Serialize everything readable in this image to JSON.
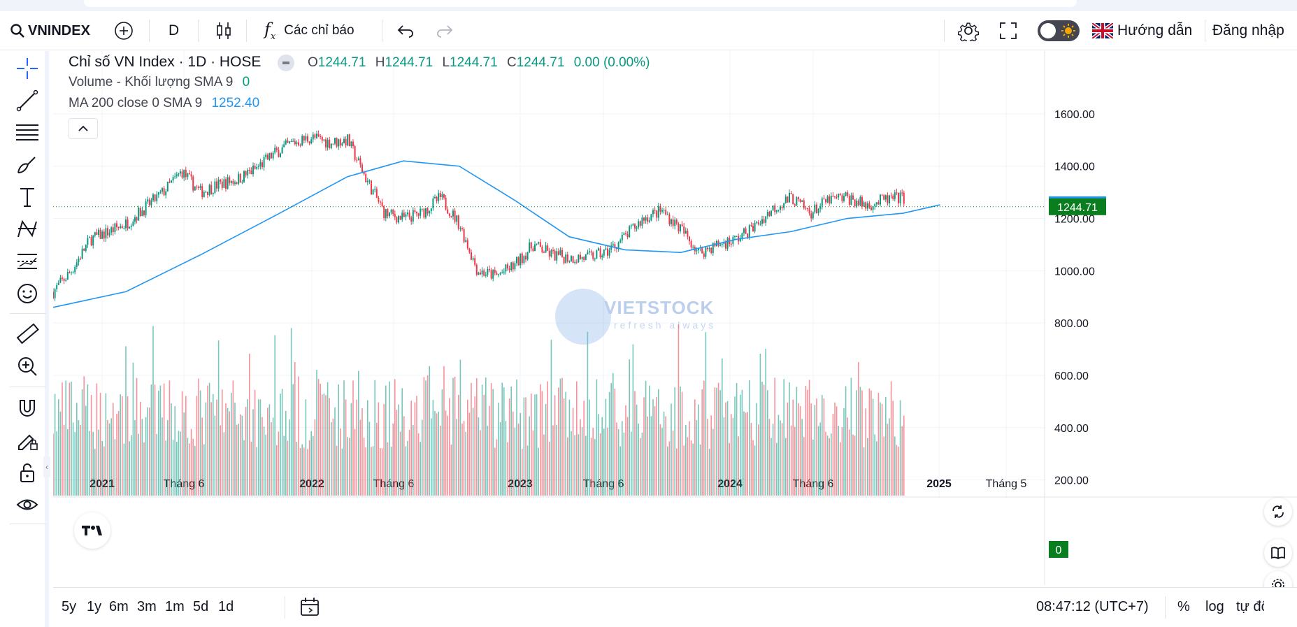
{
  "toolbar": {
    "symbol": "VNINDEX",
    "interval": "D",
    "indicators_label": "Các chỉ báo",
    "guide_label": "Hướng dẫn",
    "login_label": "Đăng nhập"
  },
  "legend": {
    "title": "Chỉ số VN Index · 1D · HOSE",
    "o_label": "O",
    "o_value": "1244.71",
    "h_label": "H",
    "h_value": "1244.71",
    "l_label": "L",
    "l_value": "1244.71",
    "c_label": "C",
    "c_value": "1244.71",
    "change": "0.00 (0.00%)",
    "volume_label": "Volume - Khối lượng SMA 9",
    "volume_value": "0",
    "ma_label": "MA 200 close 0 SMA 9",
    "ma_value": "1252.40"
  },
  "watermark": {
    "text": "VIETSTOCK",
    "sub": "refresh always"
  },
  "bottom": {
    "ranges": [
      "5y",
      "1y",
      "6m",
      "3m",
      "1m",
      "5d",
      "1d"
    ],
    "clock": "08:47:12 (UTC+7)",
    "percent": "%",
    "log": "log",
    "auto": "tự động"
  },
  "colors": {
    "up": "#089981",
    "down": "#f23645",
    "ma": "#2196f3",
    "last_price": "#0a7d1e",
    "ma_tag": "#2196f3"
  },
  "chart_data": {
    "type": "candlestick",
    "symbol": "VN Index",
    "interval": "1D",
    "exchange": "HOSE",
    "y_ticks": [
      "1600.00",
      "1400.00",
      "1200.00",
      "1000.00",
      "800.00",
      "600.00",
      "400.00",
      "200.00"
    ],
    "y_range": [
      140,
      1680
    ],
    "x_ticks": [
      "2021",
      "Tháng 6",
      "2022",
      "Tháng 6",
      "2023",
      "Tháng 6",
      "2024",
      "Tháng 6",
      "2025",
      "Tháng 5"
    ],
    "last_price": "1244.71",
    "ma_last": "1252.40",
    "volume_last": "0",
    "series": [
      {
        "name": "VN Index",
        "x": [
          "2020-11",
          "2020-12",
          "2021-01",
          "2021-02",
          "2021-03",
          "2021-04",
          "2021-05",
          "2021-06",
          "2021-07",
          "2021-08",
          "2021-09",
          "2021-10",
          "2021-11",
          "2021-12",
          "2022-01",
          "2022-02",
          "2022-03",
          "2022-04",
          "2022-05",
          "2022-06",
          "2022-07",
          "2022-08",
          "2022-09",
          "2022-10",
          "2022-11",
          "2022-12",
          "2023-01",
          "2023-02",
          "2023-03",
          "2023-04",
          "2023-05",
          "2023-06",
          "2023-07",
          "2023-08",
          "2023-09",
          "2023-10",
          "2023-11",
          "2023-12",
          "2024-01",
          "2024-02",
          "2024-03",
          "2024-04",
          "2024-05",
          "2024-06",
          "2024-07",
          "2024-08",
          "2024-09",
          "2024-10",
          "2024-11"
        ],
        "y": [
          920,
          1000,
          1120,
          1150,
          1180,
          1240,
          1300,
          1380,
          1300,
          1330,
          1350,
          1390,
          1450,
          1490,
          1510,
          1490,
          1500,
          1350,
          1220,
          1200,
          1220,
          1280,
          1180,
          1000,
          980,
          1020,
          1100,
          1060,
          1050,
          1050,
          1070,
          1130,
          1200,
          1230,
          1160,
          1070,
          1100,
          1120,
          1170,
          1240,
          1280,
          1220,
          1270,
          1280,
          1250,
          1270,
          1280,
          1260,
          1245
        ]
      },
      {
        "name": "MA 200",
        "x": [
          "2020-11",
          "2021-03",
          "2021-07",
          "2021-11",
          "2022-03",
          "2022-06",
          "2022-09",
          "2022-12",
          "2023-03",
          "2023-06",
          "2023-09",
          "2023-12",
          "2024-03",
          "2024-06",
          "2024-09",
          "2024-11"
        ],
        "y": [
          860,
          920,
          1060,
          1210,
          1360,
          1420,
          1400,
          1270,
          1130,
          1080,
          1070,
          1120,
          1150,
          1200,
          1220,
          1252
        ]
      }
    ]
  }
}
